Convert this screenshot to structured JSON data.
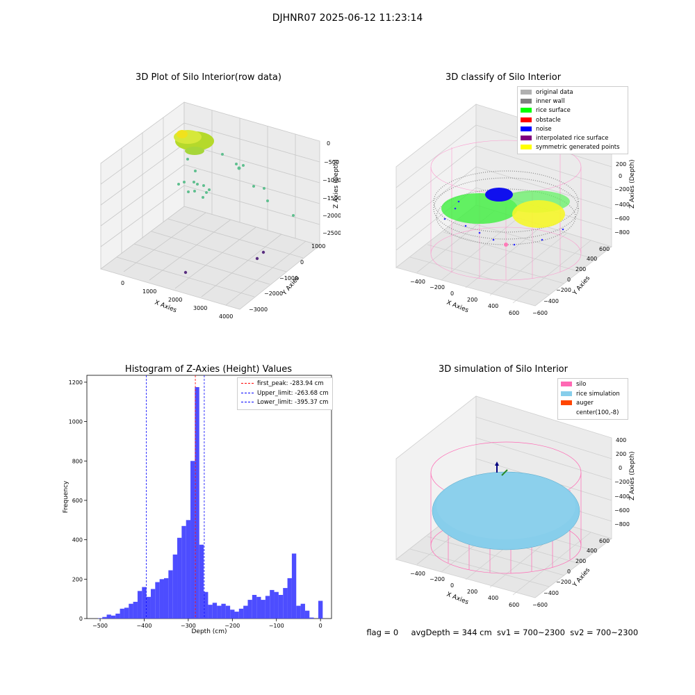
{
  "suptitle": "DJHNR07 2025-06-12 11:23:14",
  "footer": {
    "flag": "flag = 0",
    "avg_depth": "avgDepth = 344 cm",
    "sv1": "sv1 = 700~2300",
    "sv2": "sv2 = 700~2300"
  },
  "panels": {
    "raw": {
      "title": "3D Plot of Silo Interior(row data)",
      "xlabel": "X Axies",
      "ylabel": "Y Axies",
      "zlabel": "Z Axies (Depth)",
      "xticks": [
        "0",
        "1000",
        "2000",
        "3000",
        "4000"
      ],
      "yticks": [
        "1000",
        "0",
        "−1000",
        "−2000",
        "−3000"
      ],
      "zticks": [
        "0",
        "−500",
        "−1000",
        "−1500",
        "−2000",
        "−2500"
      ]
    },
    "classify": {
      "title": "3D classify of Silo Interior",
      "xlabel": "X Axies",
      "ylabel": "Y Axies",
      "zlabel": "Z Axies (Depth)",
      "xticks": [
        "−400",
        "−200",
        "0",
        "200",
        "400",
        "600"
      ],
      "yticks": [
        "600",
        "400",
        "200",
        "0",
        "−200",
        "−400",
        "−600"
      ],
      "zticks": [
        "200",
        "0",
        "−200",
        "−400",
        "−600",
        "−800"
      ],
      "legend": [
        {
          "label": "original data",
          "color": "#b0b0b0"
        },
        {
          "label": "inner wall",
          "color": "#808080"
        },
        {
          "label": "rice surface",
          "color": "#00ff00"
        },
        {
          "label": "obstacle",
          "color": "#ff0000"
        },
        {
          "label": "noise",
          "color": "#0000ff"
        },
        {
          "label": "interpolated rice surface",
          "color": "#800080"
        },
        {
          "label": "symmetric generated points",
          "color": "#ffff00"
        }
      ]
    },
    "simulation": {
      "title": "3D simulation of Silo Interior",
      "xlabel": "X Axies",
      "ylabel": "Y Axies",
      "zlabel": "Z Axies (Depth)",
      "xticks": [
        "−400",
        "−200",
        "0",
        "200",
        "400",
        "600"
      ],
      "yticks": [
        "600",
        "400",
        "200",
        "0",
        "−200",
        "−400",
        "−600"
      ],
      "zticks": [
        "400",
        "200",
        "0",
        "−200",
        "−400",
        "−600",
        "−800"
      ],
      "legend": [
        {
          "label": "silo",
          "color": "#ff69b4"
        },
        {
          "label": "rice simulation",
          "color": "#87ceeb"
        },
        {
          "label": "auger",
          "color": "#ff4500"
        },
        {
          "label": "center(100,-8)",
          "color": "#ffffff"
        }
      ]
    }
  },
  "chart_data": [
    {
      "type": "histogram",
      "title": "Histogram of Z-Axies (Height) Values",
      "xlabel": "Depth (cm)",
      "ylabel": "Frequency",
      "xlim": [
        -530,
        25
      ],
      "ylim": [
        0,
        1235
      ],
      "xticks": [
        -500,
        -400,
        -300,
        -200,
        -100,
        0
      ],
      "yticks": [
        0,
        200,
        400,
        600,
        800,
        1000,
        1200
      ],
      "bar_color": "#4d4dff",
      "bin_width": 10,
      "bin_starts": [
        -505,
        -495,
        -485,
        -475,
        -465,
        -455,
        -445,
        -435,
        -425,
        -415,
        -405,
        -395,
        -385,
        -375,
        -365,
        -355,
        -345,
        -335,
        -325,
        -315,
        -305,
        -295,
        -285,
        -275,
        -265,
        -255,
        -245,
        -235,
        -225,
        -215,
        -205,
        -195,
        -185,
        -175,
        -165,
        -155,
        -145,
        -135,
        -125,
        -115,
        -105,
        -95,
        -85,
        -75,
        -65,
        -55,
        -45,
        -35,
        -25,
        -15,
        -5
      ],
      "values": [
        2,
        8,
        20,
        15,
        25,
        50,
        55,
        75,
        85,
        140,
        160,
        110,
        150,
        185,
        200,
        205,
        245,
        325,
        410,
        470,
        500,
        800,
        1175,
        375,
        135,
        70,
        80,
        65,
        75,
        65,
        45,
        35,
        50,
        65,
        95,
        120,
        110,
        95,
        115,
        145,
        135,
        120,
        155,
        205,
        330,
        65,
        75,
        40,
        5,
        0,
        90
      ],
      "vlines": [
        {
          "label": "first_peak: -283.94 cm",
          "x": -283.94,
          "color": "#ff0000"
        },
        {
          "label": "Upper_limit: -263.68 cm",
          "x": -263.68,
          "color": "#0000ff"
        },
        {
          "label": "Lower_limit: -395.37 cm",
          "x": -395.37,
          "color": "#0000ff"
        }
      ],
      "legend_position": "upper right"
    }
  ]
}
